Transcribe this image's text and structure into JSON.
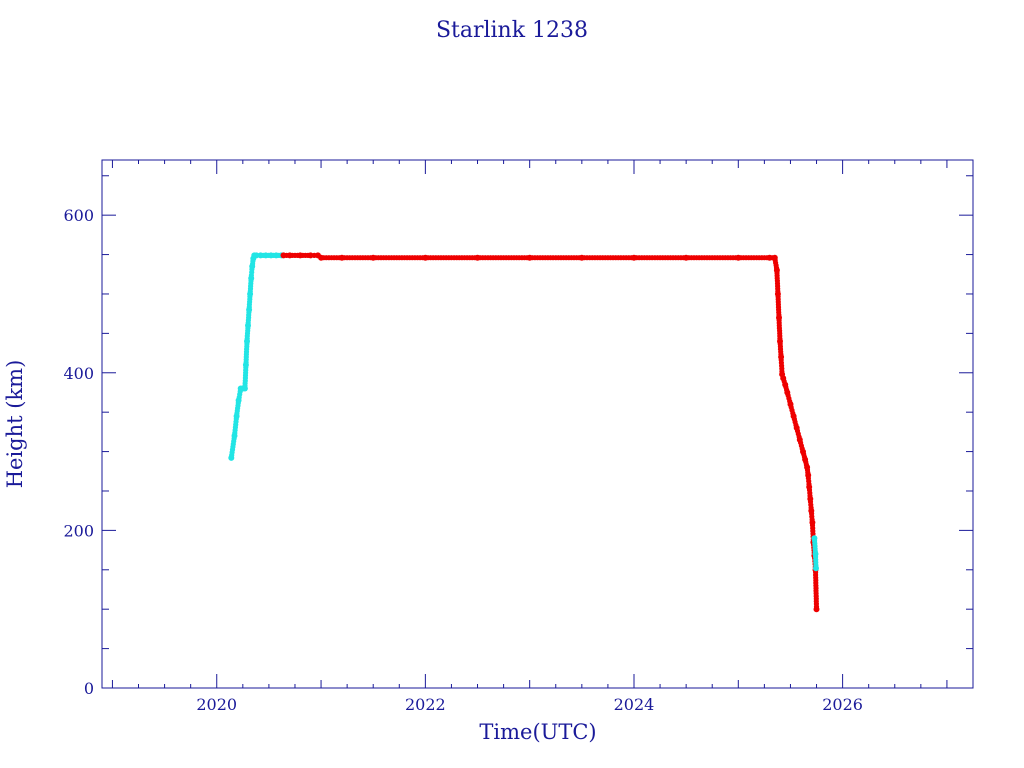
{
  "chart_data": {
    "type": "scatter",
    "title": "Starlink 1238",
    "xlabel": "Time(UTC)",
    "ylabel": "Height (km)",
    "x_ticks": [
      2020,
      2022,
      2024,
      2026
    ],
    "y_ticks": [
      0,
      200,
      400,
      600
    ],
    "xlim": [
      2018.9,
      2027.25
    ],
    "ylim": [
      0,
      670
    ],
    "colors": {
      "frame": "#1a1a99",
      "text": "#1a1a99",
      "cyan": "#22e5e5",
      "red": "#ee0000",
      "line": "#1a1a99"
    },
    "series": [
      {
        "color": "cyan",
        "x": [
          2020.14,
          2020.17,
          2020.19,
          2020.21,
          2020.23,
          2020.25,
          2020.27,
          2020.28,
          2020.29,
          2020.3,
          2020.31,
          2020.32,
          2020.33,
          2020.34,
          2020.35,
          2020.36,
          2020.38,
          2020.42,
          2020.47,
          2020.52,
          2020.57,
          2020.62
        ],
        "y": [
          292,
          320,
          345,
          365,
          380,
          380,
          380,
          410,
          440,
          460,
          480,
          500,
          520,
          535,
          545,
          549,
          549,
          549,
          549,
          549,
          549,
          549
        ]
      },
      {
        "color": "red",
        "x": [
          2020.64,
          2020.7,
          2020.8,
          2020.9,
          2020.97,
          2021.0,
          2021.2,
          2021.5,
          2022.0,
          2022.5,
          2023.0,
          2023.5,
          2024.0,
          2024.5,
          2025.0,
          2025.3,
          2025.35,
          2025.37,
          2025.38,
          2025.39,
          2025.4,
          2025.41,
          2025.42,
          2025.43,
          2025.45,
          2025.47,
          2025.5,
          2025.53,
          2025.56,
          2025.59,
          2025.62,
          2025.64,
          2025.66,
          2025.67,
          2025.68,
          2025.69,
          2025.7,
          2025.71,
          2025.72,
          2025.73,
          2025.74,
          2025.75
        ],
        "y": [
          549,
          549,
          549,
          549,
          549,
          546,
          546,
          546,
          546,
          546,
          546,
          546,
          546,
          546,
          546,
          546,
          546,
          530,
          500,
          470,
          440,
          420,
          398,
          393,
          385,
          375,
          360,
          345,
          330,
          315,
          300,
          290,
          280,
          270,
          255,
          240,
          225,
          210,
          185,
          168,
          150,
          100
        ]
      },
      {
        "color": "cyan",
        "x": [
          2025.73,
          2025.74,
          2025.745
        ],
        "y": [
          190,
          170,
          152
        ]
      }
    ]
  }
}
